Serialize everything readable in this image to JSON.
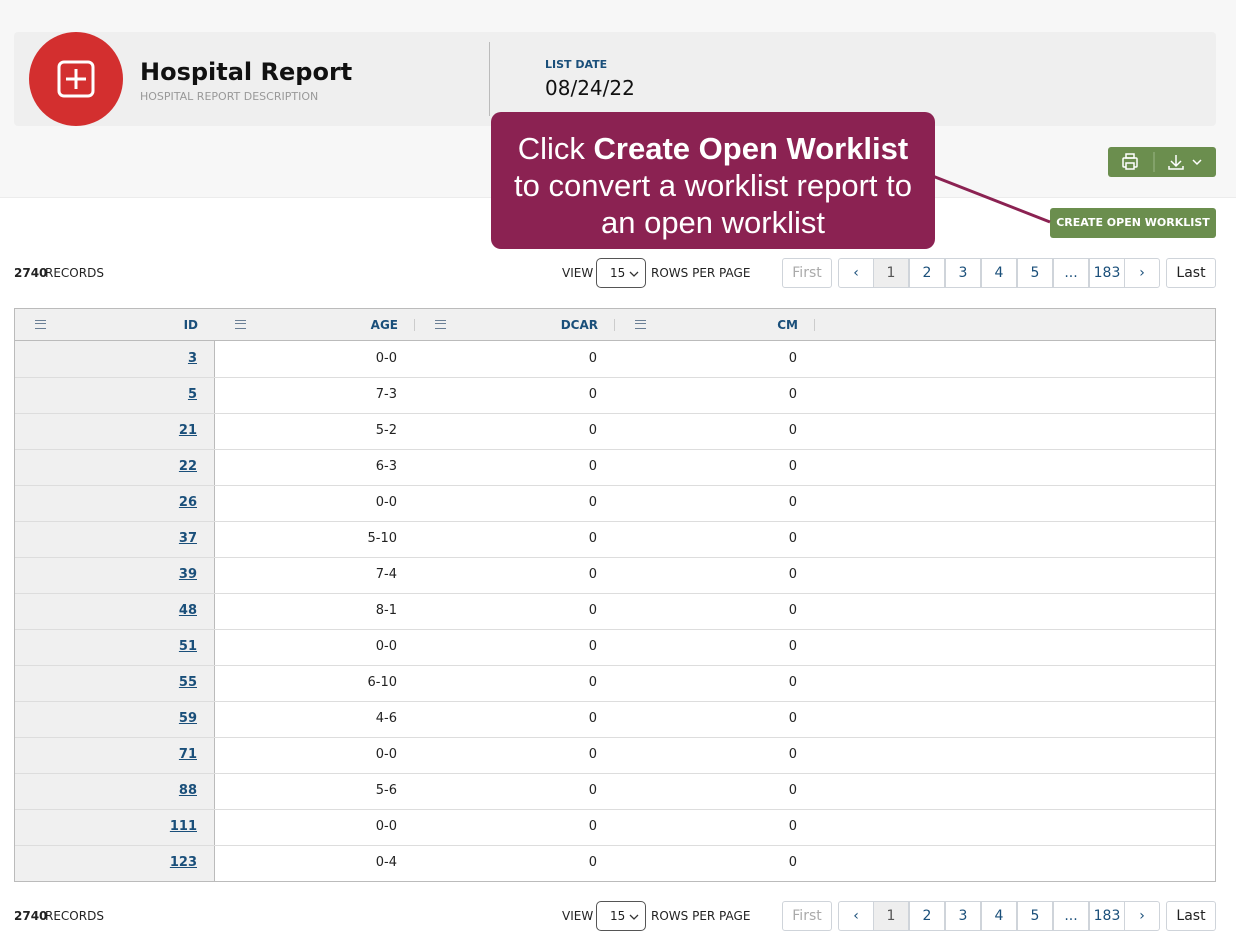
{
  "header": {
    "title": "Hospital Report",
    "description": "HOSPITAL REPORT DESCRIPTION",
    "list_date_label": "LIST DATE",
    "list_date": "08/24/22"
  },
  "callout": {
    "prefix": "Click",
    "bold": "Create Open Worklist",
    "line2": "to convert a worklist report to",
    "line3": "an open worklist"
  },
  "actions": {
    "create_button": "CREATE OPEN WORKLIST"
  },
  "toolbar": {
    "records_count": 2740,
    "records_label": "RECORDS",
    "view_label": "VIEW",
    "rows_per_page": 15,
    "rows_label": "ROWS PER PAGE"
  },
  "pagination": {
    "first": "First",
    "prev": "‹",
    "pages": [
      "1",
      "2",
      "3",
      "4",
      "5",
      "...",
      "183"
    ],
    "next": "›",
    "last": "Last"
  },
  "table": {
    "columns": [
      "ID",
      "AGE",
      "DCAR",
      "CM"
    ],
    "rows": [
      [
        3,
        "0-0",
        0,
        0
      ],
      [
        5,
        "7-3",
        0,
        0
      ],
      [
        21,
        "5-2",
        0,
        0
      ],
      [
        22,
        "6-3",
        0,
        0
      ],
      [
        26,
        "0-0",
        0,
        0
      ],
      [
        37,
        "5-10",
        0,
        0
      ],
      [
        39,
        "7-4",
        0,
        0
      ],
      [
        48,
        "8-1",
        0,
        0
      ],
      [
        51,
        "0-0",
        0,
        0
      ],
      [
        55,
        "6-10",
        0,
        0
      ],
      [
        59,
        "4-6",
        0,
        0
      ],
      [
        71,
        "0-0",
        0,
        0
      ],
      [
        88,
        "5-6",
        0,
        0
      ],
      [
        111,
        "0-0",
        0,
        0
      ],
      [
        123,
        "0-4",
        0,
        0
      ]
    ]
  }
}
